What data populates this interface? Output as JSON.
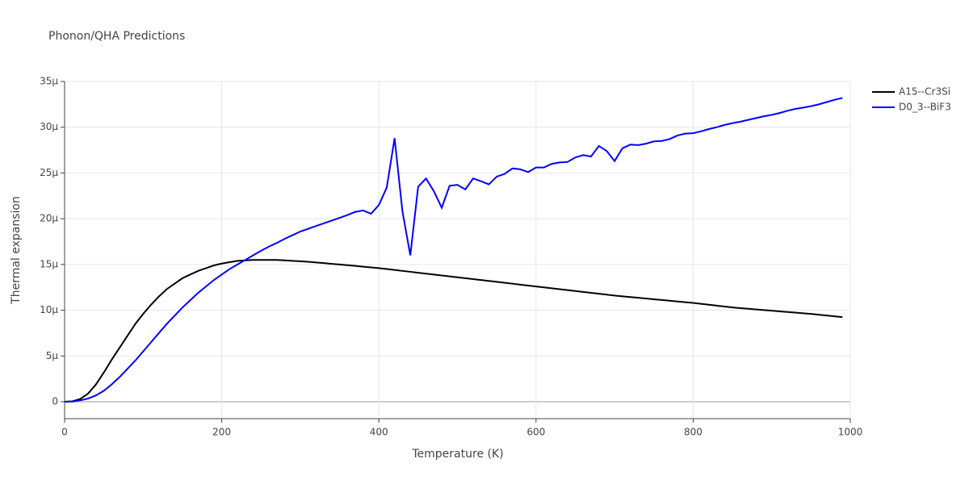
{
  "chart_data": {
    "type": "line",
    "title": "Phonon/QHA Predictions",
    "x_label": "Temperature (K)",
    "y_label": "Thermal expansion",
    "x": [
      0,
      10,
      20,
      30,
      40,
      50,
      60,
      70,
      80,
      90,
      100,
      110,
      120,
      130,
      140,
      150,
      160,
      170,
      180,
      190,
      200,
      210,
      220,
      230,
      240,
      250,
      260,
      270,
      280,
      290,
      300,
      310,
      320,
      330,
      340,
      350,
      360,
      370,
      380,
      390,
      400,
      410,
      420,
      430,
      440,
      450,
      460,
      470,
      480,
      490,
      500,
      510,
      520,
      530,
      540,
      550,
      560,
      570,
      580,
      590,
      600,
      610,
      620,
      630,
      640,
      650,
      660,
      670,
      680,
      690,
      700,
      710,
      720,
      730,
      740,
      750,
      760,
      770,
      780,
      790,
      800,
      810,
      820,
      830,
      840,
      850,
      860,
      870,
      880,
      890,
      900,
      910,
      920,
      930,
      940,
      950,
      960,
      970,
      980,
      990
    ],
    "series": [
      {
        "name": "A15--Cr3Si",
        "color": "#000000",
        "values": [
          0,
          5e-08,
          3e-07,
          9e-07,
          1.9e-06,
          3.2e-06,
          4.6e-06,
          5.9e-06,
          7.2e-06,
          8.5e-06,
          9.6e-06,
          1.06e-05,
          1.15e-05,
          1.23e-05,
          1.29e-05,
          1.35e-05,
          1.39e-05,
          1.43e-05,
          1.46e-05,
          1.49e-05,
          1.51e-05,
          1.525e-05,
          1.54e-05,
          1.545e-05,
          1.55e-05,
          1.55e-05,
          1.55e-05,
          1.55e-05,
          1.545e-05,
          1.54e-05,
          1.535e-05,
          1.53e-05,
          1.522e-05,
          1.515e-05,
          1.507e-05,
          1.5e-05,
          1.492e-05,
          1.484e-05,
          1.476e-05,
          1.468e-05,
          1.46e-05,
          1.45e-05,
          1.44e-05,
          1.43e-05,
          1.42e-05,
          1.41e-05,
          1.4e-05,
          1.39e-05,
          1.38e-05,
          1.37e-05,
          1.36e-05,
          1.35e-05,
          1.34e-05,
          1.33e-05,
          1.32e-05,
          1.31e-05,
          1.3e-05,
          1.29e-05,
          1.28e-05,
          1.27e-05,
          1.26e-05,
          1.25e-05,
          1.24e-05,
          1.23e-05,
          1.22e-05,
          1.21e-05,
          1.2e-05,
          1.19e-05,
          1.18e-05,
          1.17e-05,
          1.16e-05,
          1.152e-05,
          1.144e-05,
          1.136e-05,
          1.128e-05,
          1.12e-05,
          1.112e-05,
          1.104e-05,
          1.096e-05,
          1.088e-05,
          1.08e-05,
          1.07e-05,
          1.06e-05,
          1.05e-05,
          1.04e-05,
          1.03e-05,
          1.023e-05,
          1.016e-05,
          1.009e-05,
          1.002e-05,
          9.95e-06,
          9.88e-06,
          9.81e-06,
          9.74e-06,
          9.67e-06,
          9.6e-06,
          9.51e-06,
          9.42e-06,
          9.34e-06,
          9.25e-06
        ]
      },
      {
        "name": "D0_3--BiF3",
        "color": "#0000ff",
        "values": [
          0,
          2e-08,
          1.5e-07,
          3.5e-07,
          7e-07,
          1.2e-06,
          1.9e-06,
          2.7e-06,
          3.6e-06,
          4.5e-06,
          5.5e-06,
          6.5e-06,
          7.5e-06,
          8.5e-06,
          9.4e-06,
          1.03e-05,
          1.11e-05,
          1.19e-05,
          1.26e-05,
          1.33e-05,
          1.39e-05,
          1.45e-05,
          1.5e-05,
          1.55e-05,
          1.6e-05,
          1.65e-05,
          1.695e-05,
          1.735e-05,
          1.78e-05,
          1.82e-05,
          1.86e-05,
          1.89e-05,
          1.92e-05,
          1.95e-05,
          1.98e-05,
          2.01e-05,
          2.04e-05,
          2.075e-05,
          2.09e-05,
          2.055e-05,
          2.15e-05,
          2.34e-05,
          2.88e-05,
          2.08e-05,
          1.6e-05,
          2.35e-05,
          2.44e-05,
          2.3e-05,
          2.12e-05,
          2.36e-05,
          2.37e-05,
          2.32e-05,
          2.44e-05,
          2.41e-05,
          2.375e-05,
          2.46e-05,
          2.49e-05,
          2.55e-05,
          2.54e-05,
          2.51e-05,
          2.56e-05,
          2.56e-05,
          2.6e-05,
          2.615e-05,
          2.62e-05,
          2.67e-05,
          2.695e-05,
          2.68e-05,
          2.795e-05,
          2.74e-05,
          2.63e-05,
          2.77e-05,
          2.81e-05,
          2.805e-05,
          2.82e-05,
          2.845e-05,
          2.85e-05,
          2.87e-05,
          2.91e-05,
          2.93e-05,
          2.935e-05,
          2.955e-05,
          2.98e-05,
          3e-05,
          3.025e-05,
          3.045e-05,
          3.06e-05,
          3.08e-05,
          3.1e-05,
          3.12e-05,
          3.135e-05,
          3.155e-05,
          3.18e-05,
          3.2e-05,
          3.215e-05,
          3.23e-05,
          3.25e-05,
          3.275e-05,
          3.3e-05,
          3.32e-05
        ]
      }
    ],
    "xlim": [
      0,
      1000
    ],
    "xticks": [
      0,
      200,
      400,
      600,
      800,
      1000
    ],
    "ylim": [
      -1.85e-06,
      3.5e-05
    ],
    "yticks": [
      0,
      {
        "value": 5e-06,
        "label": "5μ"
      },
      {
        "value": 1e-05,
        "label": "10μ"
      },
      {
        "value": 1.5e-05,
        "label": "15μ"
      },
      {
        "value": 2e-05,
        "label": "20μ"
      },
      {
        "value": 2.5e-05,
        "label": "25μ"
      },
      {
        "value": 3e-05,
        "label": "30μ"
      },
      {
        "value": 3.5e-05,
        "label": "35μ"
      }
    ],
    "grid": true,
    "legend": "right"
  }
}
